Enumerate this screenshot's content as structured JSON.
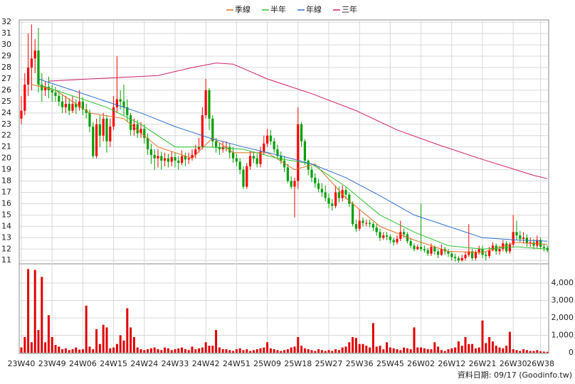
{
  "chart_data": [
    {
      "type": "candlestick",
      "categories": [
        "23W40",
        null,
        null,
        null,
        null,
        null,
        null,
        null,
        null,
        "23W49",
        null,
        null,
        null,
        null,
        null,
        null,
        null,
        null,
        "24W06",
        null,
        null,
        null,
        null,
        null,
        null,
        null,
        null,
        "24W15",
        null,
        null,
        null,
        null,
        null,
        null,
        null,
        null,
        "24W24",
        null,
        null,
        null,
        null,
        null,
        null,
        null,
        null,
        "24W33",
        null,
        null,
        null,
        null,
        null,
        null,
        null,
        null,
        "24W42",
        null,
        null,
        null,
        null,
        null,
        null,
        null,
        null,
        "24W51",
        null,
        null,
        null,
        null,
        null,
        null,
        null,
        null,
        "25W09",
        null,
        null,
        null,
        null,
        null,
        null,
        null,
        null,
        "25W18",
        null,
        null,
        null,
        null,
        null,
        null,
        null,
        null,
        "25W27",
        null,
        null,
        null,
        null,
        null,
        null,
        null,
        null,
        "25W36",
        null,
        null,
        null,
        null,
        null,
        null,
        null,
        null,
        "25W45",
        null,
        null,
        null,
        null,
        null,
        null,
        null,
        null,
        "26W02",
        null,
        null,
        null,
        null,
        null,
        null,
        null,
        null,
        "26W12",
        null,
        null,
        null,
        null,
        null,
        null,
        null,
        null,
        "26W21",
        null,
        null,
        null,
        null,
        null,
        null,
        null,
        null,
        "26W30",
        null,
        null,
        null,
        null,
        null,
        null,
        null,
        "26W38",
        null,
        null
      ],
      "open": [
        23.5,
        24.2,
        26.5,
        28.0,
        28.8,
        29.5,
        26.5,
        26.0,
        26.3,
        26.0,
        25.8,
        25.5,
        25.0,
        24.5,
        24.8,
        24.2,
        24.8,
        24.5,
        25.0,
        24.3,
        24.0,
        22.8,
        20.2,
        23.0,
        22.0,
        23.5,
        21.5,
        22.8,
        24.5,
        25.2,
        25.0,
        24.5,
        23.8,
        22.5,
        23.0,
        22.2,
        22.6,
        21.8,
        20.8,
        20.3,
        20.0,
        20.2,
        19.8,
        20.0,
        19.7,
        20.1,
        19.8,
        19.6,
        20.2,
        19.9,
        20.0,
        20.3,
        20.8,
        21.0,
        23.8,
        26.0,
        23.5,
        21.5,
        21.0,
        20.8,
        21.0,
        21.0,
        20.5,
        20.0,
        19.7,
        19.0,
        17.5,
        19.3,
        20.2,
        20.0,
        19.5,
        20.6,
        21.3,
        22.0,
        21.5,
        20.8,
        20.2,
        19.8,
        19.2,
        18.0,
        17.5,
        18.0,
        23.0,
        21.5,
        19.8,
        19.0,
        18.3,
        17.8,
        17.3,
        17.0,
        16.5,
        16.0,
        15.8,
        17.0,
        16.5,
        17.2,
        16.8,
        16.0,
        14.2,
        13.8,
        14.5,
        14.3,
        14.3,
        14.2,
        13.9,
        13.5,
        13.0,
        13.2,
        13.1,
        12.8,
        12.6,
        12.9,
        13.5,
        13.3,
        12.7,
        12.3,
        12.0,
        12.2,
        12.0,
        11.9,
        11.6,
        12.2,
        11.8,
        11.5,
        12.0,
        11.8,
        11.6,
        11.3,
        11.2,
        11.0,
        11.2,
        11.5,
        11.8,
        11.2,
        11.7,
        12.0,
        11.5,
        11.4,
        11.9,
        12.3,
        11.8,
        12.0,
        12.5,
        11.8,
        12.4,
        13.5,
        13.2,
        12.9,
        13.0,
        12.5,
        12.6,
        12.3,
        12.8,
        12.2,
        12.1
      ],
      "high": [
        25.5,
        27.5,
        31.0,
        31.8,
        30.5,
        31.5,
        27.5,
        26.8,
        27.2,
        26.5,
        26.3,
        26.0,
        25.6,
        25.5,
        25.3,
        25.5,
        25.2,
        26.0,
        25.4,
        24.8,
        24.3,
        23.2,
        23.5,
        23.8,
        24.0,
        23.8,
        23.5,
        25.5,
        29.0,
        26.0,
        26.5,
        25.2,
        24.0,
        23.5,
        23.4,
        23.2,
        23.0,
        22.2,
        21.3,
        20.8,
        20.8,
        20.6,
        20.5,
        20.4,
        20.6,
        20.5,
        20.2,
        20.7,
        20.5,
        20.5,
        20.8,
        21.2,
        21.8,
        24.5,
        27.0,
        26.2,
        23.8,
        21.8,
        21.4,
        21.5,
        21.5,
        21.3,
        21.0,
        20.4,
        20.0,
        19.3,
        19.6,
        20.6,
        20.5,
        20.4,
        21.0,
        22.0,
        22.6,
        22.5,
        21.8,
        21.2,
        20.6,
        20.2,
        19.5,
        18.4,
        18.3,
        24.5,
        23.2,
        21.7,
        19.9,
        19.3,
        18.7,
        18.2,
        17.8,
        17.6,
        16.9,
        16.4,
        17.6,
        17.5,
        17.6,
        17.5,
        17.0,
        16.2,
        14.6,
        15.5,
        14.8,
        14.6,
        14.6,
        14.4,
        14.2,
        13.8,
        13.5,
        13.5,
        13.3,
        13.0,
        13.2,
        14.5,
        13.8,
        13.5,
        12.9,
        12.5,
        12.4,
        16.0,
        12.3,
        12.1,
        12.5,
        12.3,
        12.0,
        12.4,
        12.2,
        12.0,
        11.8,
        11.6,
        11.4,
        11.5,
        11.8,
        14.2,
        12.0,
        11.9,
        12.3,
        12.3,
        11.8,
        12.2,
        12.6,
        12.5,
        12.3,
        12.8,
        12.7,
        12.6,
        15.0,
        14.5,
        13.6,
        13.5,
        13.3,
        13.0,
        12.9,
        13.2,
        13.0,
        12.5,
        12.3
      ],
      "low": [
        23.0,
        23.8,
        25.5,
        26.0,
        27.5,
        25.8,
        25.0,
        25.5,
        25.3,
        25.0,
        25.0,
        24.6,
        24.0,
        24.0,
        23.8,
        24.0,
        23.9,
        24.2,
        23.8,
        23.5,
        22.3,
        20.0,
        20.0,
        21.0,
        21.5,
        20.5,
        21.0,
        22.5,
        24.0,
        24.3,
        23.8,
        23.2,
        22.0,
        22.0,
        21.8,
        21.8,
        21.3,
        20.3,
        19.5,
        19.0,
        19.2,
        19.0,
        19.3,
        19.2,
        19.3,
        19.2,
        19.0,
        19.4,
        19.3,
        19.5,
        19.8,
        20.0,
        20.5,
        20.8,
        23.5,
        22.5,
        21.0,
        20.5,
        20.3,
        20.5,
        20.6,
        20.0,
        19.6,
        19.3,
        18.6,
        17.3,
        17.3,
        19.0,
        19.6,
        19.2,
        19.2,
        20.3,
        21.0,
        21.2,
        20.5,
        19.9,
        19.5,
        18.8,
        17.8,
        17.3,
        14.8,
        17.3,
        21.0,
        19.4,
        18.5,
        17.9,
        17.4,
        17.0,
        16.6,
        16.2,
        15.6,
        15.4,
        15.6,
        16.1,
        16.2,
        16.4,
        15.7,
        14.0,
        13.5,
        13.6,
        14.0,
        14.0,
        13.9,
        13.6,
        13.2,
        12.7,
        12.8,
        12.8,
        12.5,
        12.3,
        12.4,
        12.7,
        13.0,
        12.5,
        12.1,
        11.8,
        11.9,
        11.8,
        11.7,
        11.4,
        11.4,
        11.5,
        11.2,
        11.4,
        11.5,
        11.3,
        11.0,
        10.9,
        10.8,
        10.9,
        11.0,
        11.3,
        11.0,
        11.0,
        11.5,
        11.2,
        11.0,
        11.2,
        11.8,
        11.5,
        11.5,
        11.8,
        11.6,
        11.6,
        12.2,
        12.8,
        12.6,
        12.5,
        12.2,
        12.2,
        12.0,
        12.1,
        12.0,
        11.8,
        11.7
      ],
      "close": [
        24.2,
        26.5,
        28.0,
        28.8,
        29.5,
        26.5,
        26.0,
        26.3,
        26.0,
        25.8,
        25.5,
        25.0,
        24.5,
        24.8,
        24.2,
        24.8,
        24.5,
        25.0,
        24.3,
        24.0,
        22.8,
        20.2,
        23.0,
        22.0,
        23.5,
        21.5,
        22.8,
        24.5,
        25.2,
        25.0,
        24.5,
        23.8,
        22.5,
        23.0,
        22.2,
        22.6,
        21.8,
        20.8,
        20.3,
        20.0,
        20.2,
        19.8,
        20.0,
        19.7,
        20.1,
        19.8,
        19.6,
        20.2,
        19.9,
        20.0,
        20.3,
        20.8,
        21.0,
        23.8,
        26.0,
        23.5,
        21.5,
        21.0,
        20.8,
        21.0,
        21.0,
        20.5,
        20.0,
        19.7,
        19.0,
        17.5,
        19.3,
        20.2,
        20.0,
        19.5,
        20.6,
        21.3,
        22.0,
        21.5,
        20.8,
        20.2,
        19.8,
        19.2,
        18.0,
        17.5,
        18.0,
        23.0,
        21.5,
        19.8,
        19.0,
        18.3,
        17.8,
        17.3,
        17.0,
        16.5,
        16.0,
        15.8,
        17.0,
        16.5,
        17.2,
        16.8,
        16.0,
        14.2,
        13.8,
        14.5,
        14.3,
        14.3,
        14.2,
        13.9,
        13.5,
        13.0,
        13.2,
        13.1,
        12.8,
        12.6,
        12.9,
        13.5,
        13.3,
        12.7,
        12.3,
        12.0,
        12.2,
        12.0,
        11.9,
        11.6,
        12.2,
        11.8,
        11.5,
        12.0,
        11.8,
        11.6,
        11.3,
        11.2,
        11.0,
        11.2,
        11.5,
        11.8,
        11.2,
        11.7,
        12.0,
        11.5,
        11.4,
        11.9,
        12.3,
        11.8,
        12.0,
        12.5,
        11.8,
        12.4,
        13.5,
        13.2,
        12.9,
        13.0,
        12.5,
        12.6,
        12.3,
        12.8,
        12.2,
        12.1,
        11.9
      ],
      "up_color": "#ff0000",
      "down_color": "#00a000",
      "series": [
        {
          "name": "季線",
          "color": "#e07020",
          "x": [
            3,
            10,
            20,
            30,
            40,
            50,
            56,
            62,
            72,
            80,
            86,
            95,
            105,
            115,
            125,
            135,
            145,
            154
          ],
          "values": [
            26.5,
            26.0,
            24.0,
            23.5,
            21.0,
            20.0,
            21.8,
            20.5,
            20.5,
            19.0,
            19.5,
            16.5,
            14.0,
            12.8,
            11.8,
            11.7,
            12.6,
            12.4
          ]
        },
        {
          "name": "半年",
          "color": "#30c030",
          "x": [
            5,
            15,
            25,
            35,
            45,
            55,
            65,
            75,
            85,
            95,
            105,
            115,
            125,
            135,
            145,
            154
          ],
          "values": [
            26.5,
            25.5,
            24.5,
            23.0,
            21.0,
            21.0,
            20.8,
            20.0,
            19.5,
            17.5,
            15.0,
            13.5,
            12.3,
            12.0,
            12.2,
            12.0
          ]
        },
        {
          "name": "年線",
          "color": "#3070d0",
          "x": [
            5,
            15,
            25,
            35,
            45,
            55,
            65,
            75,
            85,
            95,
            105,
            115,
            125,
            135,
            145,
            154
          ],
          "values": [
            27.0,
            26.0,
            25.0,
            24.0,
            22.8,
            21.8,
            21.0,
            20.3,
            19.5,
            18.3,
            16.7,
            15.0,
            14.0,
            13.0,
            12.8,
            12.7
          ]
        },
        {
          "name": "三年",
          "color": "#d0206a",
          "x": [
            8,
            20,
            40,
            50,
            57,
            62,
            72,
            85,
            98,
            110,
            122,
            135,
            150,
            154
          ],
          "values": [
            26.8,
            27.0,
            27.3,
            28.0,
            28.4,
            28.3,
            27.0,
            25.7,
            24.2,
            22.5,
            21.2,
            19.9,
            18.5,
            18.2
          ]
        }
      ],
      "ylim": [
        10.7,
        32.2
      ],
      "yticks": [
        11,
        12,
        13,
        14,
        15,
        16,
        17,
        18,
        19,
        20,
        21,
        22,
        23,
        24,
        25,
        26,
        27,
        28,
        29,
        30,
        31,
        32
      ],
      "grid": true
    },
    {
      "type": "bar",
      "color": "#e00000",
      "values": [
        300,
        900,
        4800,
        600,
        4750,
        1300,
        4350,
        600,
        2150,
        900,
        450,
        350,
        200,
        250,
        150,
        200,
        300,
        180,
        200,
        2700,
        350,
        200,
        1350,
        500,
        1600,
        1450,
        250,
        300,
        500,
        1000,
        700,
        2550,
        1450,
        900,
        300,
        200,
        150,
        200,
        250,
        300,
        200,
        150,
        300,
        250,
        150,
        200,
        250,
        300,
        200,
        150,
        350,
        200,
        250,
        300,
        600,
        400,
        400,
        1300,
        300,
        200,
        200,
        150,
        100,
        200,
        250,
        150,
        200,
        100,
        150,
        200,
        250,
        300,
        600,
        250,
        200,
        150,
        100,
        150,
        200,
        300,
        350,
        900,
        400,
        250,
        200,
        150,
        100,
        200,
        150,
        100,
        150,
        100,
        200,
        150,
        300,
        350,
        600,
        900,
        850,
        500,
        500,
        400,
        300,
        1700,
        350,
        400,
        200,
        600,
        300,
        250,
        200,
        150,
        300,
        250,
        200,
        1450,
        300,
        300,
        250,
        200,
        200,
        600,
        350,
        150,
        100,
        200,
        250,
        300,
        650,
        400,
        900,
        500,
        500,
        250,
        300,
        1850,
        550,
        900,
        650,
        400,
        300,
        250,
        400,
        1200,
        200,
        150,
        100,
        200,
        150,
        100,
        100,
        150,
        80,
        60,
        50
      ],
      "ylim": [
        0,
        5100
      ],
      "yticks": [
        0,
        {
          "value": 1000,
          "label": "1,000"
        },
        {
          "value": 2000,
          "label": "2,000"
        },
        {
          "value": 3000,
          "label": "3,000"
        },
        {
          "value": 4000,
          "label": "4,000"
        }
      ]
    }
  ],
  "footer": "資料日期: 09/17 (Goodinfo.tw)"
}
